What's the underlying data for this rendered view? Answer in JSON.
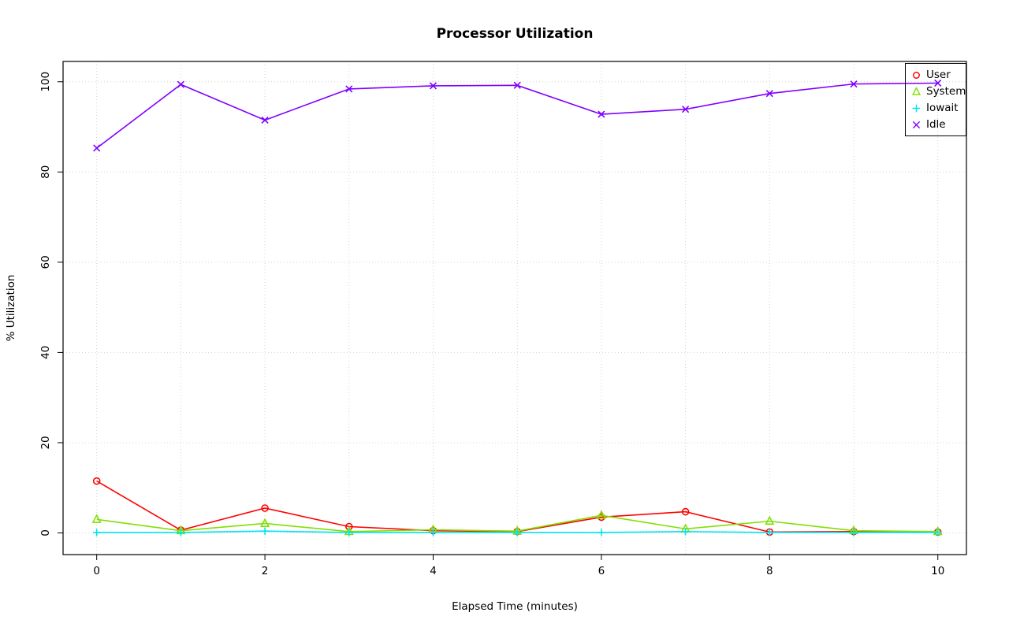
{
  "chart_data": {
    "type": "line",
    "title": "Processor Utilization",
    "xlabel": "Elapsed Time (minutes)",
    "ylabel": "% Utilization",
    "x": [
      0,
      1,
      2,
      3,
      4,
      5,
      6,
      7,
      8,
      9,
      10
    ],
    "xlim": [
      -0.4,
      10.34
    ],
    "ylim": [
      -4.8,
      104.5
    ],
    "x_ticks": [
      0,
      2,
      4,
      6,
      8,
      10
    ],
    "x_tick_labels": [
      "0",
      "2",
      "4",
      "6",
      "8",
      "10"
    ],
    "y_ticks": [
      0,
      20,
      40,
      60,
      80,
      100
    ],
    "y_tick_labels": [
      "0",
      "20",
      "40",
      "60",
      "80",
      "100"
    ],
    "x_grid": [
      0,
      1,
      2,
      3,
      4,
      5,
      6,
      7,
      8,
      9,
      10
    ],
    "y_grid": [
      0,
      20,
      40,
      60,
      80,
      100
    ],
    "grid": true,
    "grid_color": "#d3d3d3",
    "axis_color": "#000000",
    "legend_position": "top-right",
    "series": [
      {
        "name": "User",
        "marker": "circle",
        "color": "#ff0000",
        "values": [
          11.5,
          0.6,
          5.5,
          1.4,
          0.5,
          0.3,
          3.5,
          4.7,
          0.2,
          0.3,
          0.2
        ]
      },
      {
        "name": "System",
        "marker": "triangle",
        "color": "#80e000",
        "values": [
          3.0,
          0.5,
          2.1,
          0.3,
          0.7,
          0.4,
          3.9,
          0.9,
          2.6,
          0.5,
          0.3
        ]
      },
      {
        "name": "Iowait",
        "marker": "plus",
        "color": "#00e5ee",
        "values": [
          0.1,
          0.1,
          0.4,
          0.1,
          0.1,
          0.1,
          0.1,
          0.3,
          0.1,
          0.1,
          0.1
        ]
      },
      {
        "name": "Idle",
        "marker": "x",
        "color": "#8000ff",
        "values": [
          85.3,
          99.4,
          91.5,
          98.4,
          99.1,
          99.2,
          92.8,
          93.9,
          97.4,
          99.5,
          99.7
        ]
      }
    ]
  }
}
